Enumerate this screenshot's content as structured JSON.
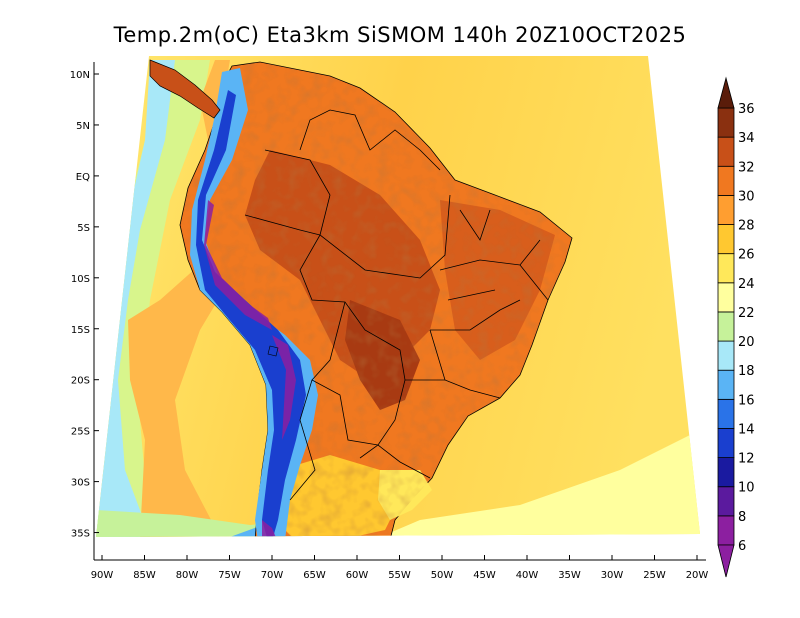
{
  "title": "Temp.2m(oC) Eta3km SiSMOM 140h 20Z10OCT2025",
  "lat_ticks": [
    "10N",
    "5N",
    "EQ",
    "5S",
    "10S",
    "15S",
    "20S",
    "25S",
    "30S",
    "35S"
  ],
  "lon_ticks": [
    "90W",
    "85W",
    "80W",
    "75W",
    "70W",
    "65W",
    "60W",
    "55W",
    "50W",
    "45W",
    "40W",
    "35W",
    "30W",
    "25W",
    "20W"
  ],
  "colorbar": {
    "labels": [
      "6",
      "8",
      "10",
      "12",
      "14",
      "16",
      "18",
      "20",
      "22",
      "24",
      "26",
      "28",
      "30",
      "32",
      "34",
      "36"
    ],
    "colors": [
      "#8c1fa0",
      "#8c1fa0",
      "#5b1a9e",
      "#1a1aa0",
      "#1a3fcf",
      "#2a73e8",
      "#5ab4f5",
      "#a8e8f8",
      "#c6f29a",
      "#ffff9e",
      "#ffe85a",
      "#ffc830",
      "#ff9e30",
      "#f07820",
      "#c85018",
      "#8a3010",
      "#5a1c0a"
    ]
  }
}
